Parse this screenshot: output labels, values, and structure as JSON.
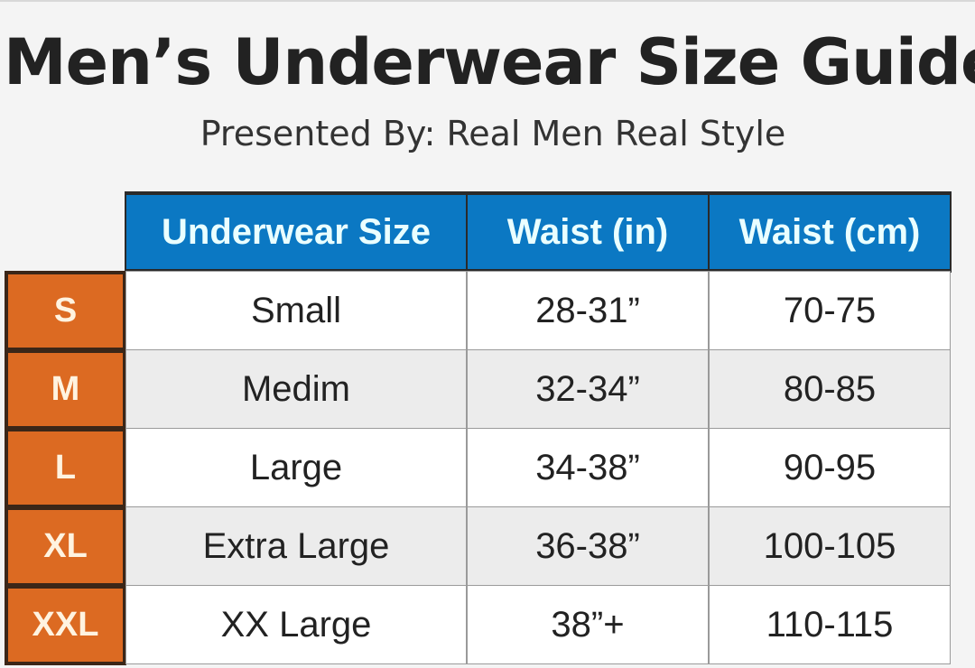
{
  "title": "Men’s Underwear Size Guide",
  "subtitle": "Presented By: Real Men Real Style",
  "colors": {
    "header": "#0b78c3",
    "size_label": "#dc6a22"
  },
  "table": {
    "headers": [
      "Underwear Size",
      "Waist (in)",
      "Waist (cm)"
    ],
    "rows": [
      {
        "code": "S",
        "size": "Small",
        "waist_in": "28-31”",
        "waist_cm": "70-75"
      },
      {
        "code": "M",
        "size": "Medim",
        "waist_in": "32-34”",
        "waist_cm": "80-85"
      },
      {
        "code": "L",
        "size": "Large",
        "waist_in": "34-38”",
        "waist_cm": "90-95"
      },
      {
        "code": "XL",
        "size": "Extra Large",
        "waist_in": "36-38”",
        "waist_cm": "100-105"
      },
      {
        "code": "XXL",
        "size": "XX Large",
        "waist_in": "38”+",
        "waist_cm": "110-115"
      }
    ]
  }
}
